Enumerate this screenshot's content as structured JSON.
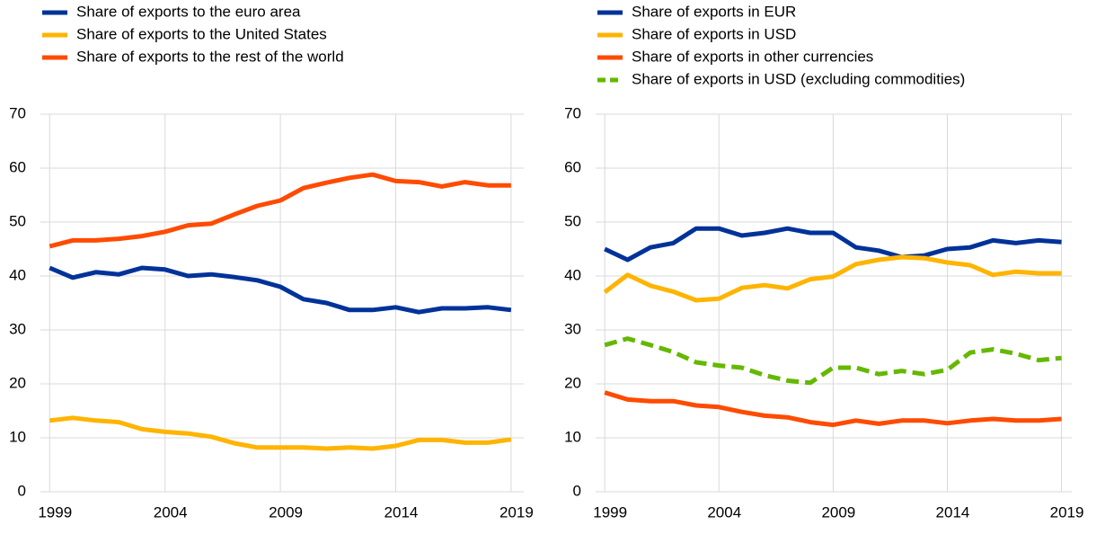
{
  "chart_data": [
    {
      "type": "line",
      "legend": "top-left",
      "grid": true,
      "x": [
        1999,
        2000,
        2001,
        2002,
        2003,
        2004,
        2005,
        2006,
        2007,
        2008,
        2009,
        2010,
        2011,
        2012,
        2013,
        2014,
        2015,
        2016,
        2017,
        2018,
        2019
      ],
      "xlim": [
        1998.6,
        2019.55
      ],
      "xticks": [
        1999,
        2004,
        2009,
        2014,
        2019
      ],
      "ylim": [
        0,
        70
      ],
      "yticks": [
        0,
        10,
        20,
        30,
        40,
        50,
        60,
        70
      ],
      "series": [
        {
          "name": "Share of exports to the euro area",
          "color": "#003299",
          "values": [
            41.5,
            39.7,
            40.7,
            40.3,
            41.5,
            41.2,
            40,
            40.3,
            39.8,
            39.2,
            38,
            35.7,
            35,
            33.7,
            33.7,
            34.2,
            33.3,
            34,
            34,
            34.2,
            33.7
          ]
        },
        {
          "name": "Share of exports to the United States",
          "color": "#ffb400",
          "values": [
            13.2,
            13.7,
            13.2,
            12.9,
            11.6,
            11.1,
            10.8,
            10.2,
            9,
            8.2,
            8.2,
            8.2,
            8,
            8.2,
            8,
            8.5,
            9.6,
            9.6,
            9.1,
            9.1,
            9.7
          ]
        },
        {
          "name": "Share of exports to the rest of the world",
          "color": "#ff4b00",
          "values": [
            45.5,
            46.6,
            46.6,
            46.9,
            47.4,
            48.2,
            49.4,
            49.7,
            51.4,
            53,
            54,
            56.3,
            57.3,
            58.2,
            58.8,
            57.6,
            57.4,
            56.6,
            57.4,
            56.8,
            56.8
          ]
        }
      ]
    },
    {
      "type": "line",
      "legend": "top-left",
      "grid": true,
      "x": [
        1999,
        2000,
        2001,
        2002,
        2003,
        2004,
        2005,
        2006,
        2007,
        2008,
        2009,
        2010,
        2011,
        2012,
        2013,
        2014,
        2015,
        2016,
        2017,
        2018,
        2019
      ],
      "xlim": [
        1998.6,
        2019.45
      ],
      "xticks": [
        1999,
        2004,
        2009,
        2014,
        2019
      ],
      "ylim": [
        0,
        70
      ],
      "yticks": [
        0,
        10,
        20,
        30,
        40,
        50,
        60,
        70
      ],
      "series": [
        {
          "name": "Share of exports in EUR",
          "color": "#003299",
          "values": [
            45,
            43,
            45.3,
            46.1,
            48.8,
            48.8,
            47.5,
            48,
            48.8,
            48,
            48,
            45.3,
            44.7,
            43.5,
            43.8,
            45,
            45.3,
            46.6,
            46.1,
            46.6,
            46.3
          ]
        },
        {
          "name": "Share of exports in USD",
          "color": "#ffb400",
          "values": [
            37,
            40.2,
            38.2,
            37.1,
            35.5,
            35.8,
            37.8,
            38.3,
            37.7,
            39.4,
            39.9,
            42.2,
            43,
            43.5,
            43.3,
            42.5,
            42,
            40.2,
            40.8,
            40.5,
            40.5
          ]
        },
        {
          "name": "Share of exports in other currencies",
          "color": "#ff4b00",
          "values": [
            18.4,
            17.1,
            16.8,
            16.8,
            16,
            15.7,
            14.8,
            14.1,
            13.8,
            12.9,
            12.4,
            13.2,
            12.6,
            13.2,
            13.2,
            12.7,
            13.2,
            13.5,
            13.2,
            13.2,
            13.5
          ]
        },
        {
          "name": "Share of exports in USD (excluding commodities)",
          "color": "#65b800",
          "dashed": true,
          "values": [
            27.2,
            28.4,
            27.2,
            25.9,
            24,
            23.4,
            23,
            21.6,
            20.6,
            20.2,
            23,
            23,
            21.8,
            22.4,
            21.8,
            22.6,
            25.8,
            26.4,
            25.6,
            24.4,
            24.8
          ]
        }
      ]
    }
  ]
}
